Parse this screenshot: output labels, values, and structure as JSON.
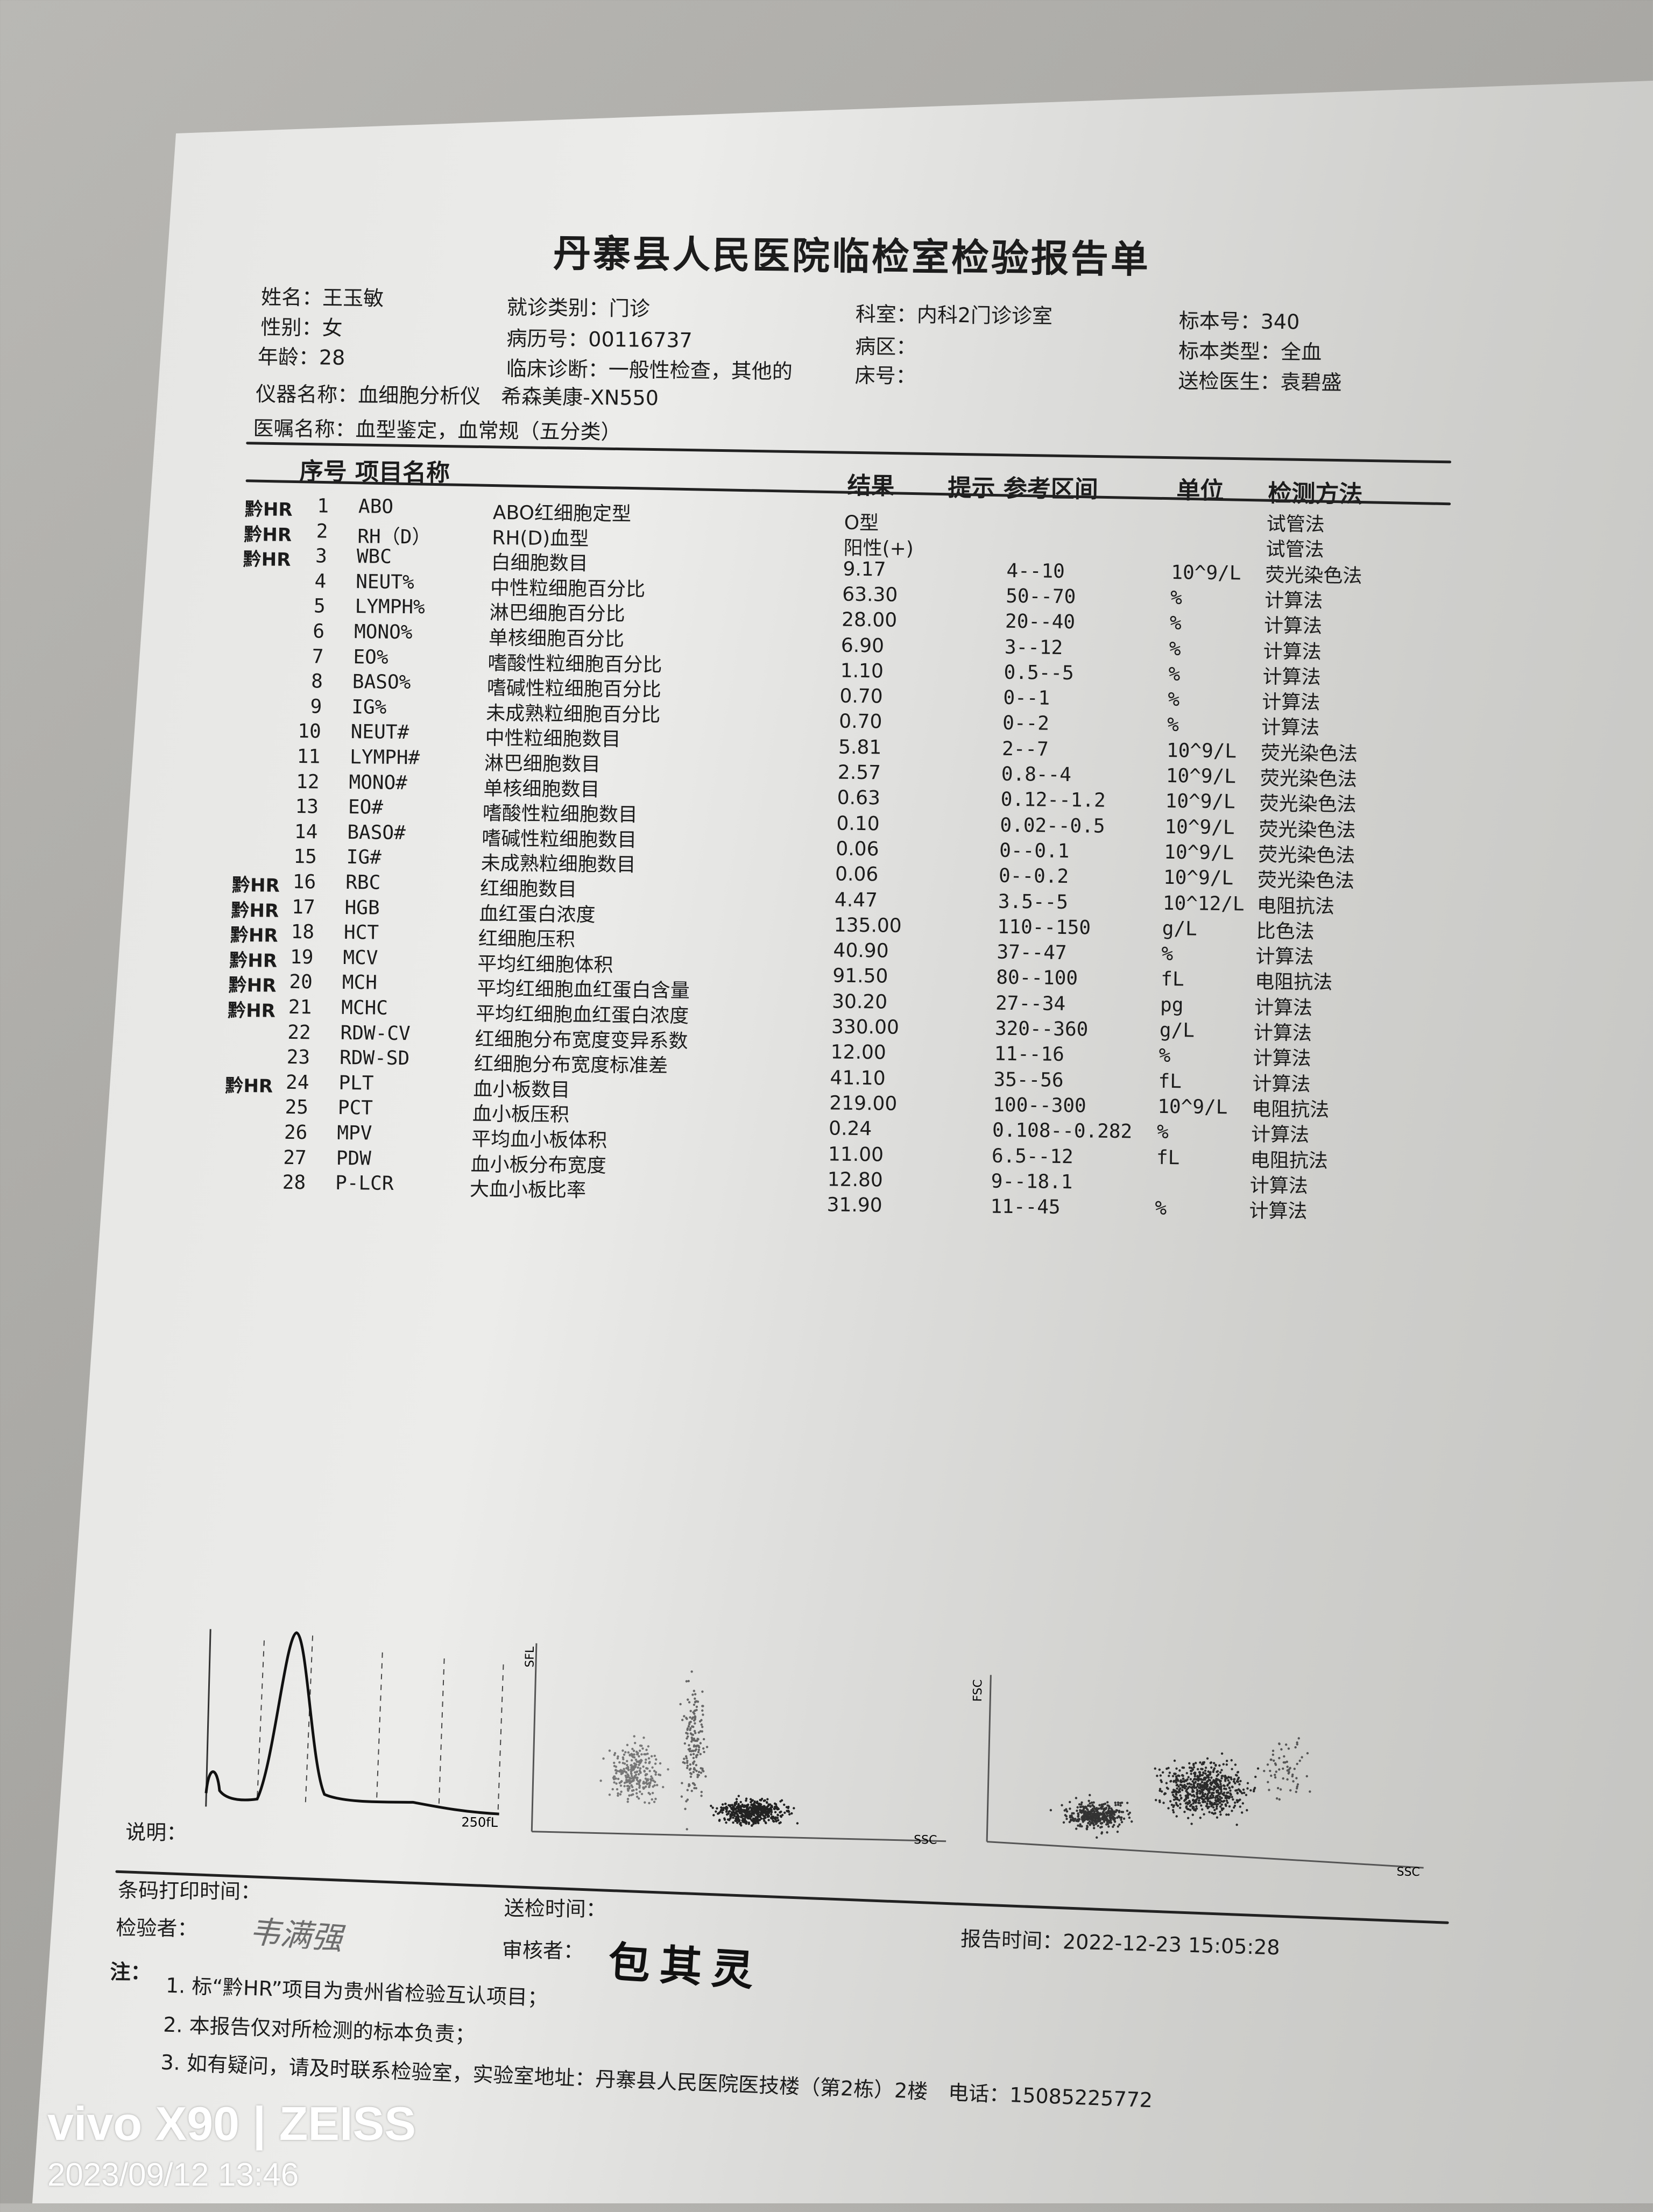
{
  "report": {
    "title": "丹寨县人民医院临检室检验报告单",
    "patient": {
      "name": "姓名：王玉敏",
      "sex": "性别：女",
      "age": "年龄：28",
      "visit_type": "就诊类别：门诊",
      "record_no": "病历号：00116737",
      "diagnosis": "临床诊断：一般性检查，其他的",
      "department": "科室：内科2门诊诊室",
      "ward": "病区：",
      "bed": "床号：",
      "sample_no": "标本号：340",
      "sample_type": "标本类型：全血",
      "doctor": "送检医生：袁碧盛",
      "instrument": "仪器名称：血细胞分析仪　希森美康-XN550",
      "order": "医嘱名称：血型鉴定，血常规（五分类）"
    },
    "columns": {
      "seq_name": "序号 项目名称",
      "result": "结果",
      "flag_range": "提示 参考区间",
      "unit": "单位",
      "method": "检测方法"
    },
    "items": [
      {
        "hr": "黔HR",
        "no": "1",
        "code": "ABO",
        "name": "ABO红细胞定型"
      },
      {
        "hr": "黔HR",
        "no": "2",
        "code": "RH（D）",
        "name": "RH(D)血型"
      },
      {
        "hr": "黔HR",
        "no": "3",
        "code": "WBC",
        "name": "白细胞数目"
      },
      {
        "hr": "",
        "no": "4",
        "code": "NEUT%",
        "name": "中性粒细胞百分比"
      },
      {
        "hr": "",
        "no": "5",
        "code": "LYMPH%",
        "name": "淋巴细胞百分比"
      },
      {
        "hr": "",
        "no": "6",
        "code": "MONO%",
        "name": "单核细胞百分比"
      },
      {
        "hr": "",
        "no": "7",
        "code": "EO%",
        "name": "嗜酸性粒细胞百分比"
      },
      {
        "hr": "",
        "no": "8",
        "code": "BASO%",
        "name": "嗜碱性粒细胞百分比"
      },
      {
        "hr": "",
        "no": "9",
        "code": "IG%",
        "name": "未成熟粒细胞百分比"
      },
      {
        "hr": "",
        "no": "10",
        "code": "NEUT#",
        "name": "中性粒细胞数目"
      },
      {
        "hr": "",
        "no": "11",
        "code": "LYMPH#",
        "name": "淋巴细胞数目"
      },
      {
        "hr": "",
        "no": "12",
        "code": "MONO#",
        "name": "单核细胞数目"
      },
      {
        "hr": "",
        "no": "13",
        "code": "EO#",
        "name": "嗜酸性粒细胞数目"
      },
      {
        "hr": "",
        "no": "14",
        "code": "BASO#",
        "name": "嗜碱性粒细胞数目"
      },
      {
        "hr": "",
        "no": "15",
        "code": "IG#",
        "name": "未成熟粒细胞数目"
      },
      {
        "hr": "黔HR",
        "no": "16",
        "code": "RBC",
        "name": "红细胞数目"
      },
      {
        "hr": "黔HR",
        "no": "17",
        "code": "HGB",
        "name": "血红蛋白浓度"
      },
      {
        "hr": "黔HR",
        "no": "18",
        "code": "HCT",
        "name": "红细胞压积"
      },
      {
        "hr": "黔HR",
        "no": "19",
        "code": "MCV",
        "name": "平均红细胞体积"
      },
      {
        "hr": "黔HR",
        "no": "20",
        "code": "MCH",
        "name": "平均红细胞血红蛋白含量"
      },
      {
        "hr": "黔HR",
        "no": "21",
        "code": "MCHC",
        "name": "平均红细胞血红蛋白浓度"
      },
      {
        "hr": "",
        "no": "22",
        "code": "RDW-CV",
        "name": "红细胞分布宽度变异系数"
      },
      {
        "hr": "",
        "no": "23",
        "code": "RDW-SD",
        "name": "红细胞分布宽度标准差"
      },
      {
        "hr": "黔HR",
        "no": "24",
        "code": "PLT",
        "name": "血小板数目"
      },
      {
        "hr": "",
        "no": "25",
        "code": "PCT",
        "name": "血小板压积"
      },
      {
        "hr": "",
        "no": "26",
        "code": "MPV",
        "name": "平均血小板体积"
      },
      {
        "hr": "",
        "no": "27",
        "code": "PDW",
        "name": "血小板分布宽度"
      },
      {
        "hr": "",
        "no": "28",
        "code": "P-LCR",
        "name": "大血小板比率"
      }
    ],
    "results": [
      {
        "value": "O型",
        "range": "",
        "unit": "",
        "method": "试管法"
      },
      {
        "value": "阳性(+)",
        "range": "",
        "unit": "",
        "method": "试管法"
      },
      {
        "value": "9.17",
        "range": "4--10",
        "unit": "10^9/L",
        "method": "荧光染色法"
      },
      {
        "value": "63.30",
        "range": "50--70",
        "unit": "%",
        "method": "计算法"
      },
      {
        "value": "28.00",
        "range": "20--40",
        "unit": "%",
        "method": "计算法"
      },
      {
        "value": "6.90",
        "range": "3--12",
        "unit": "%",
        "method": "计算法"
      },
      {
        "value": "1.10",
        "range": "0.5--5",
        "unit": "%",
        "method": "计算法"
      },
      {
        "value": "0.70",
        "range": "0--1",
        "unit": "%",
        "method": "计算法"
      },
      {
        "value": "0.70",
        "range": "0--2",
        "unit": "%",
        "method": "计算法"
      },
      {
        "value": "5.81",
        "range": "2--7",
        "unit": "10^9/L",
        "method": "荧光染色法"
      },
      {
        "value": "2.57",
        "range": "0.8--4",
        "unit": "10^9/L",
        "method": "荧光染色法"
      },
      {
        "value": "0.63",
        "range": "0.12--1.2",
        "unit": "10^9/L",
        "method": "荧光染色法"
      },
      {
        "value": "0.10",
        "range": "0.02--0.5",
        "unit": "10^9/L",
        "method": "荧光染色法"
      },
      {
        "value": "0.06",
        "range": "0--0.1",
        "unit": "10^9/L",
        "method": "荧光染色法"
      },
      {
        "value": "0.06",
        "range": "0--0.2",
        "unit": "10^9/L",
        "method": "荧光染色法"
      },
      {
        "value": "4.47",
        "range": "3.5--5",
        "unit": "10^12/L",
        "method": "电阻抗法"
      },
      {
        "value": "135.00",
        "range": "110--150",
        "unit": "g/L",
        "method": "比色法"
      },
      {
        "value": "40.90",
        "range": "37--47",
        "unit": "%",
        "method": "计算法"
      },
      {
        "value": "91.50",
        "range": "80--100",
        "unit": "fL",
        "method": "电阻抗法"
      },
      {
        "value": "30.20",
        "range": "27--34",
        "unit": "pg",
        "method": "计算法"
      },
      {
        "value": "330.00",
        "range": "320--360",
        "unit": "g/L",
        "method": "计算法"
      },
      {
        "value": "12.00",
        "range": "11--16",
        "unit": "%",
        "method": "计算法"
      },
      {
        "value": "41.10",
        "range": "35--56",
        "unit": "fL",
        "method": "计算法"
      },
      {
        "value": "219.00",
        "range": "100--300",
        "unit": "10^9/L",
        "method": "电阻抗法"
      },
      {
        "value": "0.24",
        "range": "0.108--0.282",
        "unit": "%",
        "method": "计算法"
      },
      {
        "value": "11.00",
        "range": "6.5--12",
        "unit": "fL",
        "method": "电阻抗法"
      },
      {
        "value": "12.80",
        "range": "9--18.1",
        "unit": "",
        "method": "计算法"
      },
      {
        "value": "31.90",
        "range": "11--45",
        "unit": "%",
        "method": "计算法"
      }
    ],
    "graphs": {
      "histogram_axis": "250fL",
      "scatter1_y": "SFL",
      "scatter1_x": "SSC",
      "scatter2_y": "FSC",
      "scatter2_x": "SSC"
    },
    "remark_label": "说明：",
    "footer": {
      "barcode_time": "条码打印时间：",
      "send_time": "送检时间：",
      "tester": "检验者：",
      "tester_signature": "韦满强",
      "reviewer": "审核者：",
      "reviewer_signature": "包其灵",
      "report_time": "报告时间：2022-12-23 15:05:28"
    },
    "notes": {
      "label": "注：",
      "lines": [
        "1. 标“黔HR”项目为贵州省检验互认项目；",
        "2. 本报告仅对所检测的标本负责；",
        "3. 如有疑问，请及时联系检验室，实验室地址：丹寨县人民医院医技楼（第2栋）2楼　电话：15085225772"
      ]
    }
  },
  "watermark": {
    "device": "vivo X90 | ZEISS",
    "datetime": "2023/09/12 13:46"
  }
}
